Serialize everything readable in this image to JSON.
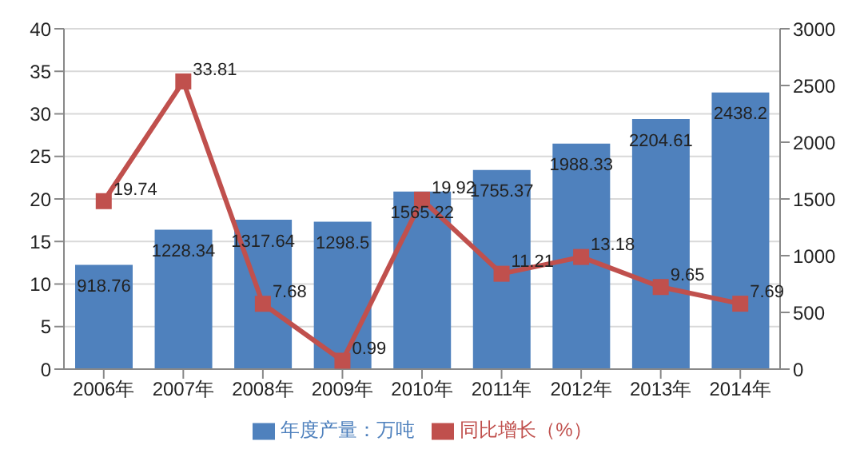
{
  "chart_data": {
    "type": "bar",
    "categories": [
      "2006年",
      "2007年",
      "2008年",
      "2009年",
      "2010年",
      "2011年",
      "2012年",
      "2013年",
      "2014年"
    ],
    "series": [
      {
        "name": "年度产量：万吨",
        "axis": "y2",
        "color": "#4f81bd",
        "values": [
          918.76,
          1228.34,
          1317.64,
          1298.5,
          1565.22,
          1755.37,
          1988.33,
          2204.61,
          2438.2
        ]
      },
      {
        "name": "同比增长（%）",
        "type": "line",
        "color": "#c0504d",
        "marker": "square",
        "values": [
          19.74,
          33.81,
          7.68,
          0.99,
          19.92,
          11.21,
          13.18,
          9.65,
          7.69
        ]
      }
    ],
    "ylim": [
      0,
      40
    ],
    "yticks": [
      0,
      5,
      10,
      15,
      20,
      25,
      30,
      35,
      40
    ],
    "y2lim": [
      0,
      3000
    ],
    "y2ticks": [
      0,
      500,
      1000,
      1500,
      2000,
      2500,
      3000
    ],
    "grid": "y",
    "legend": "bottom",
    "data_labels": true
  }
}
